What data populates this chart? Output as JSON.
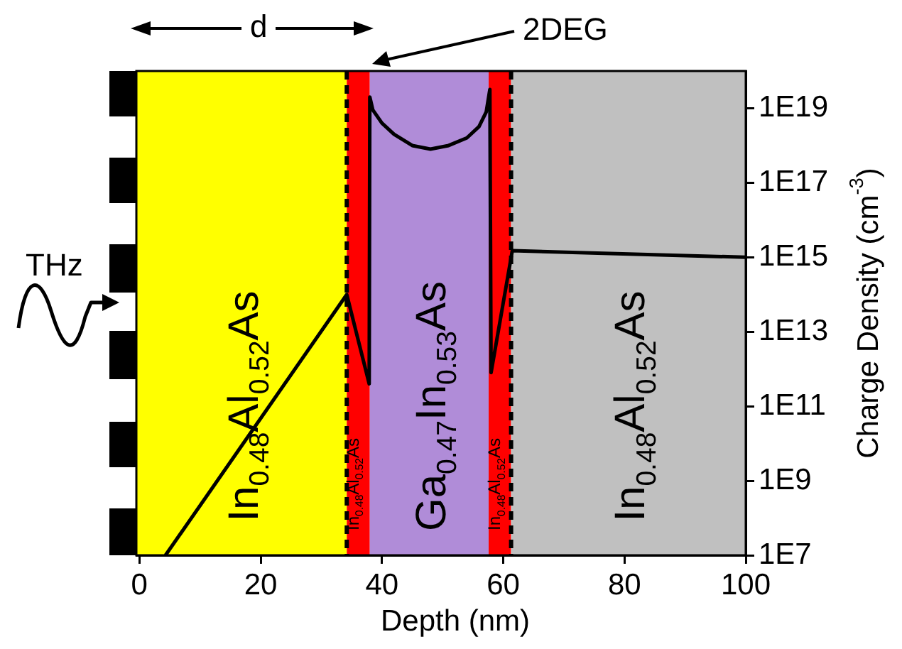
{
  "chart_data": {
    "type": "line",
    "xlabel": "Depth (nm)",
    "ylabel": "Charge Density (cm$^{-3}$)",
    "xlim": [
      -0.5,
      100
    ],
    "xticks": [
      0,
      20,
      40,
      60,
      80,
      100
    ],
    "ylim": [
      10000000.0,
      1e+20
    ],
    "yticks": [
      {
        "value": 10000000.0,
        "label": "1E7"
      },
      {
        "value": 1000000000.0,
        "label": "1E9"
      },
      {
        "value": 100000000000.0,
        "label": "1E11"
      },
      {
        "value": 10000000000000.0,
        "label": "1E13"
      },
      {
        "value": 1000000000000000.0,
        "label": "1E15"
      },
      {
        "value": 1e+17,
        "label": "1E17"
      },
      {
        "value": 1e+19,
        "label": "1E19"
      }
    ],
    "log": "y",
    "grid": false,
    "legend": false,
    "marker": "none",
    "line_style": "solid",
    "series": [
      {
        "color": "#000000",
        "x": [
          4.3,
          34.2,
          37.9,
          38.0,
          38.5,
          40,
          42,
          45,
          48,
          51,
          54,
          56,
          57.2,
          57.8,
          58.0,
          61.5,
          100
        ],
        "values": [
          10000000.0,
          100000000000000.0,
          400000000000.0,
          2e+19,
          9e+18,
          4e+18,
          2e+18,
          1e+18,
          8e+17,
          1e+18,
          1.6e+18,
          3.2e+18,
          8e+18,
          3.2e+19,
          800000000000.0,
          1500000000000000.0,
          1000000000000000.0
        ]
      }
    ],
    "bands": [
      {
        "axis": "x",
        "from": -0.5,
        "to": 34.2,
        "label": "In$_{0.48}$Al$_{0.52}$As",
        "color": "#ffff00"
      },
      {
        "axis": "x",
        "from": 34.2,
        "to": 38.0,
        "label": "In$_{0.48}$Al$_{0.52}$As",
        "color": "#ff0000"
      },
      {
        "axis": "x",
        "from": 38.0,
        "to": 57.6,
        "label": "Ga$_{0.47}$In$_{0.53}$As",
        "color": "#b08cd8"
      },
      {
        "axis": "x",
        "from": 57.6,
        "to": 61.3,
        "label": "In$_{0.48}$Al$_{0.52}$As",
        "color": "#ff0000"
      },
      {
        "axis": "x",
        "from": 61.3,
        "to": 100,
        "label": "In$_{0.48}$Al$_{0.52}$As",
        "color": "#c0c0c0"
      }
    ],
    "ref_lines": [
      {
        "axis": "x",
        "value": 34.2,
        "color": "#000000",
        "line_style": "dashed"
      },
      {
        "axis": "x",
        "value": 61.3,
        "color": "#000000",
        "line_style": "dashed"
      }
    ],
    "annotations": [
      "d",
      "2DEG",
      "THz"
    ]
  }
}
